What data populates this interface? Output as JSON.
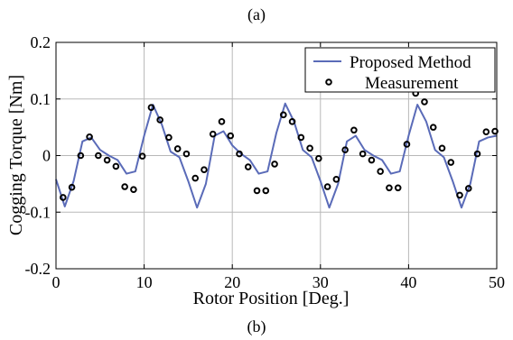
{
  "captions": {
    "top": "(a)",
    "bottom": "(b)"
  },
  "chart_data": {
    "type": "line",
    "xlabel": "Rotor Position [Deg.]",
    "ylabel": "Cogging Torque [Nm]",
    "xlim": [
      0,
      50
    ],
    "ylim": [
      -0.2,
      0.2
    ],
    "xticks": [
      0,
      10,
      20,
      30,
      40,
      50
    ],
    "yticks": [
      -0.2,
      -0.1,
      0,
      0.1,
      0.2
    ],
    "xtick_labels": [
      "0",
      "10",
      "20",
      "30",
      "40",
      "50"
    ],
    "ytick_labels": [
      "-0.2",
      "-0.1",
      "0",
      "0.1",
      "0.2"
    ],
    "grid": true,
    "legend_position": "top-right",
    "series": [
      {
        "name": "Proposed Method",
        "style": "line",
        "color": "#5a6bb8",
        "x": [
          0,
          1,
          2,
          3,
          4,
          5,
          6,
          7,
          8,
          9,
          10,
          11,
          12,
          13,
          14,
          15,
          16,
          17,
          18,
          19,
          20,
          21,
          22,
          23,
          24,
          25,
          26,
          27,
          28,
          29,
          30,
          31,
          32,
          33,
          34,
          35,
          36,
          37,
          38,
          39,
          40,
          41,
          42,
          43,
          44,
          45,
          46,
          47,
          48,
          49,
          50
        ],
        "values": [
          -0.042,
          -0.09,
          -0.045,
          0.025,
          0.032,
          0.01,
          0.0,
          -0.008,
          -0.032,
          -0.028,
          0.035,
          0.09,
          0.055,
          0.007,
          -0.003,
          -0.045,
          -0.092,
          -0.05,
          0.035,
          0.043,
          0.018,
          0.003,
          -0.008,
          -0.032,
          -0.028,
          0.04,
          0.092,
          0.06,
          0.01,
          -0.003,
          -0.045,
          -0.092,
          -0.05,
          0.025,
          0.035,
          0.01,
          0.0,
          -0.008,
          -0.032,
          -0.028,
          0.035,
          0.09,
          0.06,
          0.01,
          -0.003,
          -0.045,
          -0.092,
          -0.05,
          0.025,
          0.032,
          0.035
        ]
      },
      {
        "name": "Measurement",
        "style": "marker",
        "color": "#000000",
        "x": [
          0.8,
          1.8,
          2.8,
          3.8,
          4.8,
          5.8,
          6.8,
          7.8,
          8.8,
          9.8,
          10.8,
          11.8,
          12.8,
          13.8,
          14.8,
          15.8,
          16.8,
          17.8,
          18.8,
          19.8,
          20.8,
          21.8,
          22.8,
          23.8,
          24.8,
          25.8,
          26.8,
          27.8,
          28.8,
          29.8,
          30.8,
          31.8,
          32.8,
          33.8,
          34.8,
          35.8,
          36.8,
          37.8,
          38.8,
          39.8,
          40.8,
          41.8,
          42.8,
          43.8,
          44.8,
          45.8,
          46.8,
          47.8,
          48.8,
          49.8
        ],
        "values": [
          -0.074,
          -0.056,
          0.0,
          0.033,
          0.0,
          -0.008,
          -0.019,
          -0.055,
          -0.06,
          -0.001,
          0.085,
          0.063,
          0.032,
          0.012,
          0.003,
          -0.04,
          -0.025,
          0.038,
          0.06,
          0.035,
          0.003,
          -0.02,
          -0.062,
          -0.062,
          -0.015,
          0.072,
          0.06,
          0.032,
          0.013,
          -0.005,
          -0.055,
          -0.042,
          0.01,
          0.045,
          0.003,
          -0.008,
          -0.028,
          -0.057,
          -0.057,
          0.02,
          0.11,
          0.095,
          0.05,
          0.013,
          -0.012,
          -0.07,
          -0.058,
          0.003,
          0.042,
          0.043
        ]
      }
    ]
  }
}
